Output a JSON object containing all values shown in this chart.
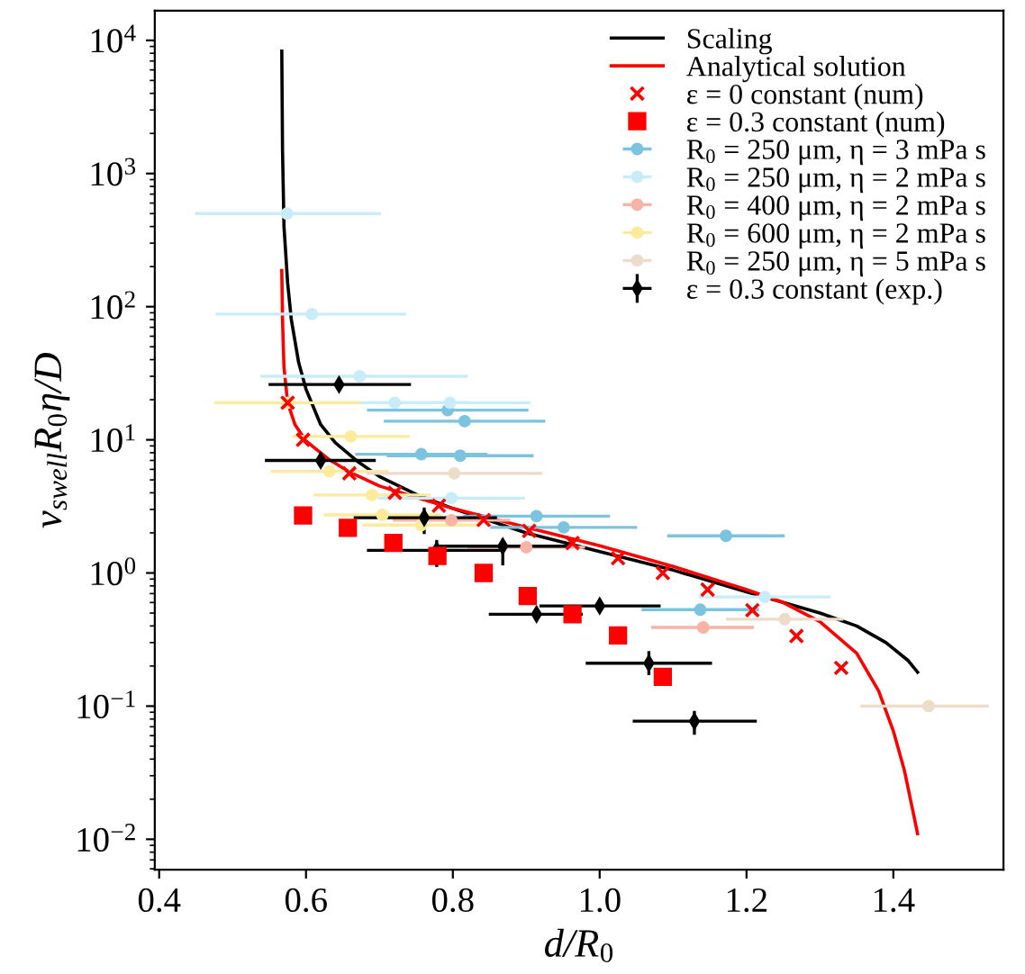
{
  "chart_data": {
    "type": "scatter",
    "xlabel": "d/R$_{0}$",
    "ylabel": "v$_{swell}$R$_{0}$η/D",
    "log": "y",
    "legend": "top right",
    "grid": false,
    "xlim": [
      0.394,
      1.55
    ],
    "xticks": [
      0.4,
      0.6,
      0.8,
      {
        "value": 1,
        "label": "1.0"
      },
      1.2,
      1.4
    ],
    "ylim": [
      0.0059,
      16700
    ],
    "yticks": [
      {
        "value": 0.01,
        "label": "10$^{−2}$"
      },
      {
        "value": 0.1,
        "label": "10$^{−1}$"
      },
      {
        "value": 1,
        "label": "10$^{0}$"
      },
      {
        "value": 10,
        "label": "10$^{1}$"
      },
      {
        "value": 100,
        "label": "10$^{2}$"
      },
      {
        "value": 1000,
        "label": "10$^{3}$"
      },
      {
        "value": 10000,
        "label": "10$^{4}$"
      }
    ],
    "series": [
      {
        "name": "Scaling",
        "type": "line",
        "color": "#000000",
        "line_style": "solid",
        "x": [
          0.567,
          0.568,
          0.57,
          0.575,
          0.58,
          0.59,
          0.6,
          0.62,
          0.64,
          0.67,
          0.7,
          0.75,
          0.8,
          0.9,
          1.0,
          1.1,
          1.2,
          1.25,
          1.3,
          1.35,
          1.39,
          1.42,
          1.433
        ],
        "values": [
          8300,
          1500,
          400,
          150,
          80,
          38,
          24,
          13,
          9.5,
          6.9,
          5.3,
          3.9,
          3.05,
          2.0,
          1.45,
          1.05,
          0.72,
          0.6,
          0.5,
          0.4,
          0.3,
          0.22,
          0.18
        ]
      },
      {
        "name": "Analytical solution",
        "type": "line",
        "color": "#ff0000",
        "line_style": "solid",
        "x": [
          0.567,
          0.568,
          0.57,
          0.575,
          0.585,
          0.6,
          0.63,
          0.66,
          0.7,
          0.75,
          0.8,
          0.9,
          1.0,
          1.1,
          1.2,
          1.25,
          1.3,
          1.35,
          1.38,
          1.4,
          1.415,
          1.425,
          1.433
        ],
        "values": [
          187,
          80,
          35,
          19,
          13,
          9.8,
          7.2,
          5.7,
          4.5,
          3.7,
          3.05,
          2.2,
          1.6,
          1.12,
          0.75,
          0.6,
          0.43,
          0.25,
          0.13,
          0.065,
          0.033,
          0.018,
          0.011
        ]
      },
      {
        "name": "ε = 0 constant (num)",
        "marker": "cross",
        "color": "#ff0000",
        "x": [
          0.575,
          0.596,
          0.659,
          0.721,
          0.781,
          0.842,
          0.904,
          0.963,
          1.025,
          1.086,
          1.147,
          1.208,
          1.268,
          1.329
        ],
        "values": [
          19,
          10,
          5.6,
          4.0,
          3.2,
          2.5,
          2.07,
          1.68,
          1.29,
          1.0,
          0.75,
          0.525,
          0.336,
          0.194
        ]
      },
      {
        "name": "ε = 0.3 constant (num)",
        "marker": "square",
        "color": "#ff0000",
        "x": [
          0.596,
          0.657,
          0.719,
          0.779,
          0.842,
          0.902,
          0.963,
          1.025,
          1.086
        ],
        "values": [
          2.7,
          2.18,
          1.68,
          1.34,
          1.0,
          0.67,
          0.49,
          0.34,
          0.166
        ]
      },
      {
        "name": "R$_{0}$ = 250 μm, η = 3 mPa s",
        "marker": "circle",
        "color": "#7cc3df",
        "x": [
          0.793,
          0.816,
          0.757,
          0.81,
          0.914,
          0.951,
          1.172,
          1.137
        ],
        "values": [
          16.7,
          13.8,
          7.8,
          7.6,
          2.67,
          2.2,
          1.9,
          0.53
        ],
        "xerrors": [
          0.11,
          0.11,
          0.09,
          0.1,
          0.1,
          0.1,
          0.08,
          0.08
        ]
      },
      {
        "name": "R$_{0}$ = 250 μm, η = 2 mPa s",
        "marker": "circle",
        "color": "#c8ecf8",
        "x": [
          0.574,
          0.608,
          0.673,
          0.721,
          0.796,
          0.798,
          1.225
        ],
        "values": [
          500,
          88,
          30,
          19,
          19,
          3.65,
          0.66
        ],
        "xerrors": [
          [
            0.449,
            0.702
          ],
          [
            0.477,
            0.736
          ],
          [
            0.538,
            0.82
          ],
          0.1,
          0.11,
          0.1,
          0.09
        ]
      },
      {
        "name": "R$_{0}$ = 400 μm, η = 2 mPa s",
        "marker": "circle",
        "color": "#f7b3a6",
        "x": [
          0.798,
          0.9,
          1.141
        ],
        "values": [
          2.49,
          1.56,
          0.39
        ],
        "xerrors": [
          0.08,
          0.08,
          [
            1.07,
            1.21
          ]
        ]
      },
      {
        "name": "R$_{0}$ = 600 μm, η = 2 mPa s",
        "marker": "circle",
        "color": "#fdea9a",
        "x": [
          0.575,
          0.661,
          0.632,
          0.69,
          0.704,
          0.757
        ],
        "values": [
          19,
          10.6,
          5.8,
          3.85,
          2.73,
          2.29
        ],
        "xerrors": [
          0.1,
          0.08,
          0.08,
          0.08,
          0.08,
          0.08
        ]
      },
      {
        "name": "R$_{0}$ = 250 μm, η = 5 mPa s",
        "marker": "circle",
        "color": "#eedccb",
        "x": [
          0.802,
          1.252,
          1.448
        ],
        "values": [
          5.6,
          0.45,
          0.1
        ],
        "xerrors": [
          0.12,
          0.08,
          [
            1.355,
            1.53
          ]
        ]
      },
      {
        "name": "ε = 0.3 constant (exp.)",
        "marker": "diamond",
        "color": "#000000",
        "x": [
          0.645,
          0.62,
          0.761,
          0.778,
          0.868,
          0.914,
          1.0,
          1.067,
          1.129
        ],
        "values": [
          26,
          7.0,
          2.6,
          1.48,
          1.59,
          0.49,
          0.565,
          0.21,
          0.077
        ],
        "errors": [
          null,
          null,
          [
            1.96,
            3.1
          ],
          [
            1.11,
            1.77
          ],
          [
            1.14,
            1.8
          ],
          null,
          null,
          [
            0.171,
            0.259
          ],
          [
            0.061,
            0.092
          ]
        ],
        "xerrors": [
          [
            0.549,
            0.743
          ],
          [
            0.544,
            0.695
          ],
          [
            0.665,
            0.86
          ],
          [
            0.683,
            0.87
          ],
          [
            0.779,
            0.959
          ],
          [
            0.849,
            0.977
          ],
          [
            0.918,
            1.083
          ],
          [
            0.981,
            1.153
          ],
          [
            1.045,
            1.214
          ]
        ]
      }
    ]
  }
}
